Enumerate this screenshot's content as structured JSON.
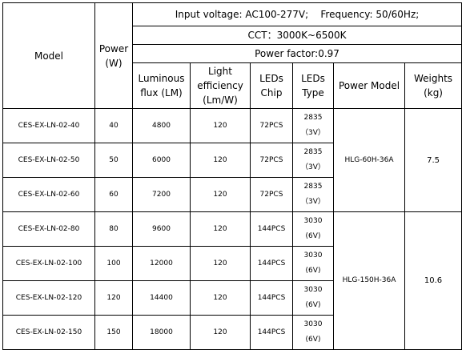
{
  "header": {
    "model": "Model",
    "power": "Power (W)",
    "input": "Input voltage: AC100-277V;    Frequency: 50/60Hz;",
    "cct": "CCT：3000K~6500K",
    "power_factor": "Power factor:0.97",
    "columns": [
      "Luminous flux (LM)",
      "Light efficiency (Lm/W)",
      "LEDs Chip",
      "LEDs Type",
      "Power Model",
      "Weights (kg)"
    ]
  },
  "rows": [
    [
      "CES-EX-LN-02-40",
      "40",
      "4800",
      "120",
      "72PCS",
      "2835（3V）"
    ],
    [
      "CES-EX-LN-02-50",
      "50",
      "6000",
      "120",
      "72PCS",
      "2835（3V）"
    ],
    [
      "CES-EX-LN-02-60",
      "60",
      "7200",
      "120",
      "72PCS",
      "2835（3V）"
    ],
    [
      "CES-EX-LN-02-80",
      "80",
      "9600",
      "120",
      "144PCS",
      "3030\n(6V)"
    ],
    [
      "CES-EX-LN-02-100",
      "100",
      "12000",
      "120",
      "144PCS",
      "3030\n(6V)"
    ],
    [
      "CES-EX-LN-02-120",
      "120",
      "14400",
      "120",
      "144PCS",
      "3030\n(6V)"
    ],
    [
      "CES-EX-LN-02-150",
      "150",
      "18000",
      "120",
      "144PCS",
      "3030\n(6V)"
    ]
  ],
  "groups": [
    {
      "power_model": "HLG-60H-36A",
      "weight": "7.5",
      "span": 3
    },
    {
      "power_model": "HLG-150H-36A",
      "weight": "10.6",
      "span": 4
    }
  ]
}
